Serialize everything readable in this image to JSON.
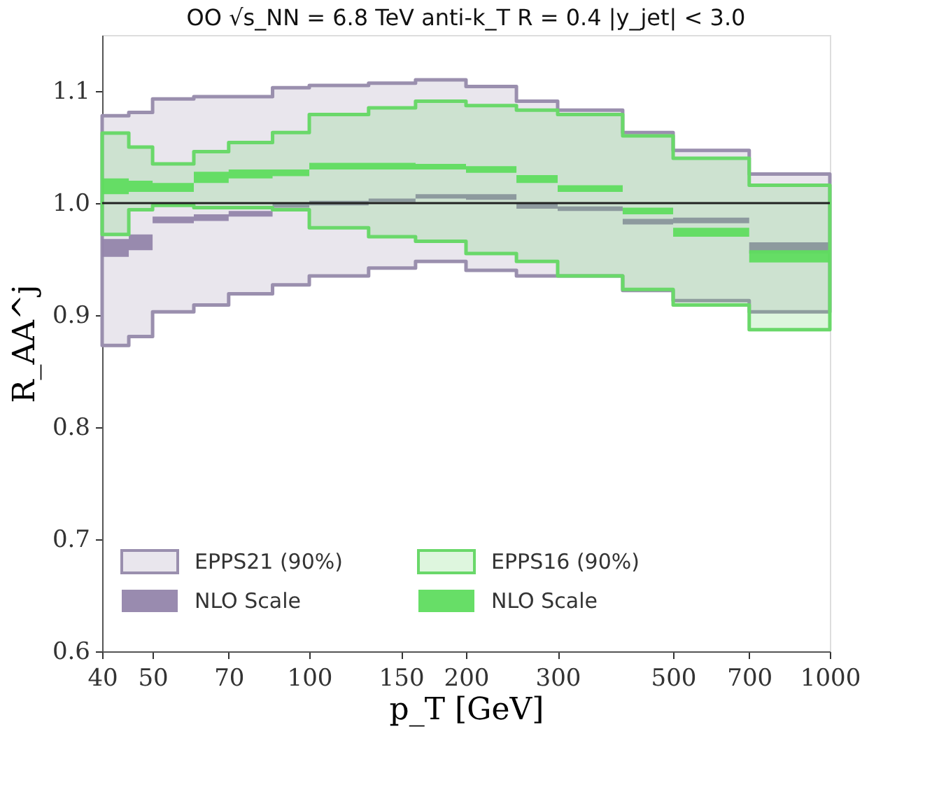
{
  "chart_data": {
    "type": "step",
    "title": "OO   √s_NN = 6.8 TeV   anti-k_T   R = 0.4   |y_jet| < 3.0",
    "xlabel": "p_T [GeV]",
    "ylabel": "R_AA^j",
    "x": [
      40,
      45,
      50,
      60,
      70,
      85,
      100,
      130,
      160,
      200,
      250,
      300,
      400,
      500,
      700,
      1000
    ],
    "series": [
      {
        "name": "EPPS21 (90%)",
        "color": "#9a8fae",
        "values": [
          null,
          null,
          null,
          null,
          null,
          null,
          null,
          null,
          null,
          null,
          null,
          null,
          null,
          null,
          null,
          null
        ],
        "lower": [
          0.873,
          0.881,
          0.903,
          0.909,
          0.919,
          0.927,
          0.935,
          0.942,
          0.948,
          0.94,
          0.935,
          0.935,
          0.922,
          0.913,
          0.903,
          0.903
        ],
        "upper": [
          1.078,
          1.081,
          1.093,
          1.095,
          1.095,
          1.103,
          1.105,
          1.107,
          1.11,
          1.104,
          1.091,
          1.083,
          1.063,
          1.047,
          1.026,
          1.026
        ]
      },
      {
        "name": "NLO Scale",
        "type": "area",
        "color": "#9385ab",
        "values": [
          null,
          null,
          null,
          null,
          null,
          null,
          null,
          null,
          null,
          null,
          null,
          null,
          null,
          null,
          null,
          null
        ],
        "lower": [
          0.952,
          0.958,
          0.982,
          0.984,
          0.988,
          0.996,
          0.998,
          1.001,
          1.004,
          1.003,
          0.995,
          0.993,
          0.981,
          0.982,
          0.955,
          0.955
        ],
        "upper": [
          0.968,
          0.972,
          0.988,
          0.99,
          0.993,
          1.0,
          1.002,
          1.004,
          1.008,
          1.008,
          1.0,
          0.997,
          0.986,
          0.987,
          0.965,
          0.965
        ]
      },
      {
        "name": "EPPS16 (90%)",
        "color": "#6ad86a",
        "values": [
          null,
          null,
          null,
          null,
          null,
          null,
          null,
          null,
          null,
          null,
          null,
          null,
          null,
          null,
          null,
          null
        ],
        "lower": [
          0.972,
          0.994,
          0.998,
          0.996,
          0.996,
          0.994,
          0.978,
          0.97,
          0.966,
          0.955,
          0.948,
          0.935,
          0.923,
          0.909,
          0.887,
          0.887
        ],
        "upper": [
          1.0625,
          1.05,
          1.035,
          1.046,
          1.054,
          1.063,
          1.079,
          1.085,
          1.091,
          1.087,
          1.083,
          1.079,
          1.06,
          1.04,
          1.016,
          1.016
        ]
      },
      {
        "name": "NLO Scale",
        "type": "area",
        "color": "#5fdc5f",
        "values": [
          null,
          null,
          null,
          null,
          null,
          null,
          null,
          null,
          null,
          null,
          null,
          null,
          null,
          null,
          null,
          null
        ],
        "lower": [
          1.008,
          1.01,
          1.01,
          1.018,
          1.022,
          1.024,
          1.03,
          1.03,
          1.03,
          1.027,
          1.018,
          1.01,
          0.99,
          0.97,
          0.947,
          0.947
        ],
        "upper": [
          1.022,
          1.02,
          1.018,
          1.028,
          1.03,
          1.03,
          1.036,
          1.036,
          1.035,
          1.033,
          1.025,
          1.016,
          0.996,
          0.978,
          0.958,
          0.958
        ]
      }
    ],
    "ref_lines": [
      {
        "axis": "y",
        "value": 1.0,
        "color": "#222222"
      }
    ],
    "log": "x",
    "xlim": [
      40,
      1000
    ],
    "xticks": [
      40,
      50,
      70,
      100,
      150,
      200,
      300,
      500,
      700,
      1000
    ],
    "ylim": [
      0.6,
      1.15
    ],
    "yticks": [
      0.6,
      0.7,
      0.8,
      0.9,
      {
        "value": 1,
        "label": "1.0"
      },
      1.1
    ],
    "grid": false,
    "legend": "bottom left"
  }
}
